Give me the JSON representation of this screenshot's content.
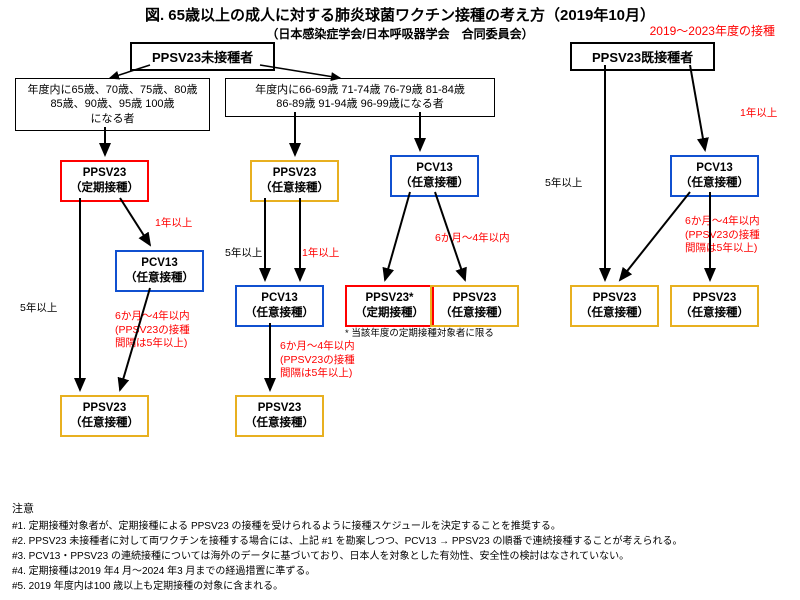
{
  "title": "図. 65歳以上の成人に対する肺炎球菌ワクチン接種の考え方（2019年10月）",
  "subtitle": "（日本感染症学会/日本呼吸器学会　合同委員会）",
  "redNote": "2019～2023年度の接種",
  "headers": {
    "naive": "PPSV23未接種者",
    "prev": "PPSV23既接種者"
  },
  "ageGroups": {
    "g1": "年度内に65歳、70歳、75歳、80歳\n85歳、90歳、95歳 100歳\nになる者",
    "g2": "年度内に66-69歳 71-74歳 76-79歳 81-84歳\n86-89歳 91-94歳 96-99歳になる者"
  },
  "v": {
    "ppsv23_routine": "PPSV23\n（定期接種）",
    "ppsv23_opt": "PPSV23\n（任意接種）",
    "ppsv23_star": "PPSV23*\n（定期接種）",
    "pcv13_opt": "PCV13\n（任意接種）"
  },
  "labels": {
    "y1": "1年以上",
    "y5": "5年以上",
    "m6_4": "6か月～4年以内",
    "m6_4_short": "6か月～4年以内",
    "note5y": "(PPSV23の接種\n間隔は5年以上)",
    "star_note": "* 当該年度の定期接種対象者に限る"
  },
  "notes": {
    "title": "注意",
    "n1": "#1. 定期接種対象者が、定期接種による PPSV23 の接種を受けられるように接種スケジュールを決定することを推奨する。",
    "n2": "#2. PPSV23 未接種者に対して両ワクチンを接種する場合には、上記 #1 を勘案しつつ、PCV13 → PPSV23 の順番で連続接種することが考えられる。",
    "n3": "#3. PCV13・PPSV23 の連続接種については海外のデータに基づいており、日本人を対象とした有効性、安全性の検討はなされていない。",
    "n4": "#4. 定期接種は2019 年4 月～2024 年3 月までの経過措置に準ずる。",
    "n5": "#5. 2019 年度内は100 歳以上も定期接種の対象に含まれる。"
  },
  "colors": {
    "red": "#ff0000",
    "gold": "#e8b020",
    "blue": "#1050d0",
    "black": "#000"
  }
}
